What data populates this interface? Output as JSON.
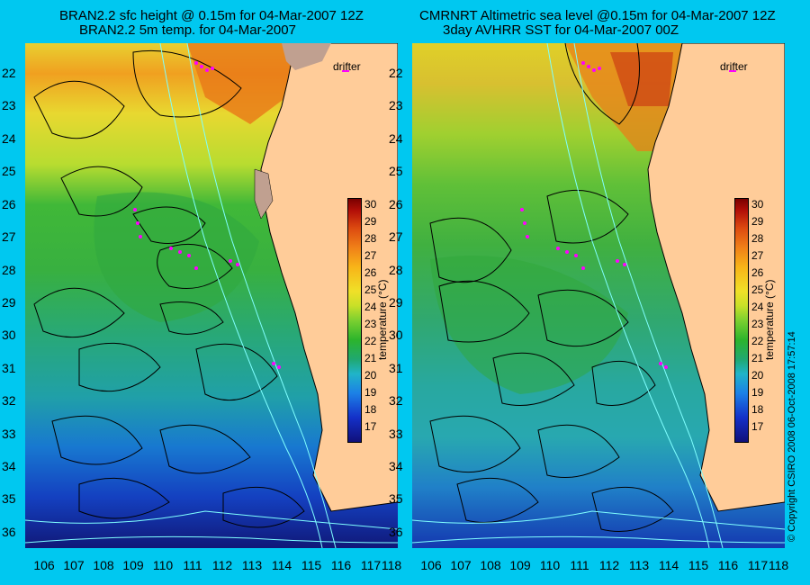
{
  "left_panel": {
    "title_line1": "BRAN2.2 sfc height @ 0.15m for 04-Mar-2007 12Z",
    "title_line2": "BRAN2.2 5m temp. for 04-Mar-2007",
    "drifter_label": "drifter"
  },
  "right_panel": {
    "title_line1": "CMRNRT Altimetric sea level  @0.15m  for 04-Mar-2007 12Z",
    "title_line2": "3day AVHRR SST for 04-Mar-2007 00Z",
    "drifter_label": "drifter"
  },
  "y_axis_labels": [
    "22",
    "23",
    "24",
    "25",
    "26",
    "27",
    "28",
    "29",
    "30",
    "31",
    "32",
    "33",
    "34",
    "35",
    "36"
  ],
  "x_axis_labels": [
    "106",
    "107",
    "108",
    "109",
    "110",
    "111",
    "112",
    "113",
    "114",
    "115",
    "116",
    "117",
    "118"
  ],
  "colorbar": {
    "title": "temperature (°C)",
    "ticks": [
      "30",
      "29",
      "28",
      "27",
      "26",
      "25",
      "24",
      "23",
      "22",
      "21",
      "20",
      "19",
      "18",
      "17"
    ]
  },
  "copyright": "© Copyright CSIRO 2008   06-Oct-2008 17:57:14",
  "colors": {
    "background": "#00c8f0",
    "land": "#ffcc99",
    "contour": "#000000",
    "isobath": "#80ffff",
    "drifter": "#ff00ff"
  }
}
